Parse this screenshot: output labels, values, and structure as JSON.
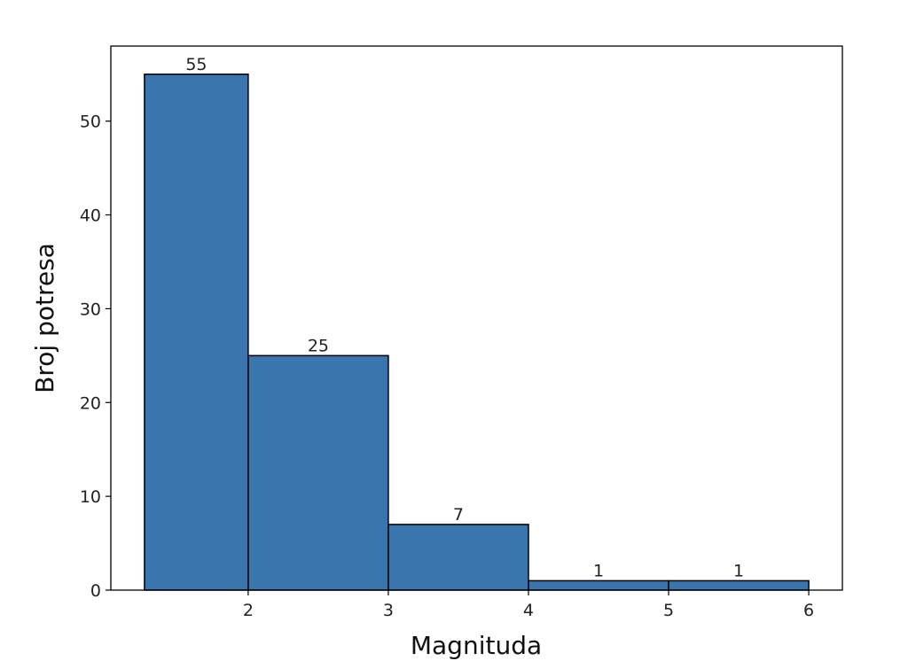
{
  "chart_data": {
    "type": "bar",
    "title": "",
    "xlabel": "Magnituda",
    "ylabel": "Broj potresa",
    "bins": [
      {
        "x0": 1.26,
        "x1": 2,
        "value": 55,
        "label": "55"
      },
      {
        "x0": 2,
        "x1": 3,
        "value": 25,
        "label": "25"
      },
      {
        "x0": 3,
        "x1": 4,
        "value": 7,
        "label": "7"
      },
      {
        "x0": 4,
        "x1": 5,
        "value": 1,
        "label": "1"
      },
      {
        "x0": 5,
        "x1": 6,
        "value": 1,
        "label": "1"
      }
    ],
    "xlim": [
      1.02,
      6.24
    ],
    "ylim": [
      0,
      58
    ],
    "xticks": [
      {
        "value": 2,
        "label": "2"
      },
      {
        "value": 3,
        "label": "3"
      },
      {
        "value": 4,
        "label": "4"
      },
      {
        "value": 5,
        "label": "5"
      },
      {
        "value": 6,
        "label": "6"
      }
    ],
    "yticks": [
      {
        "value": 0,
        "label": "0"
      },
      {
        "value": 10,
        "label": "10"
      },
      {
        "value": 20,
        "label": "20"
      },
      {
        "value": 30,
        "label": "30"
      },
      {
        "value": 40,
        "label": "40"
      },
      {
        "value": 50,
        "label": "50"
      }
    ],
    "bar_color": "#3a75ad",
    "edge_color": "#000000",
    "grid": false,
    "legend": "none"
  }
}
